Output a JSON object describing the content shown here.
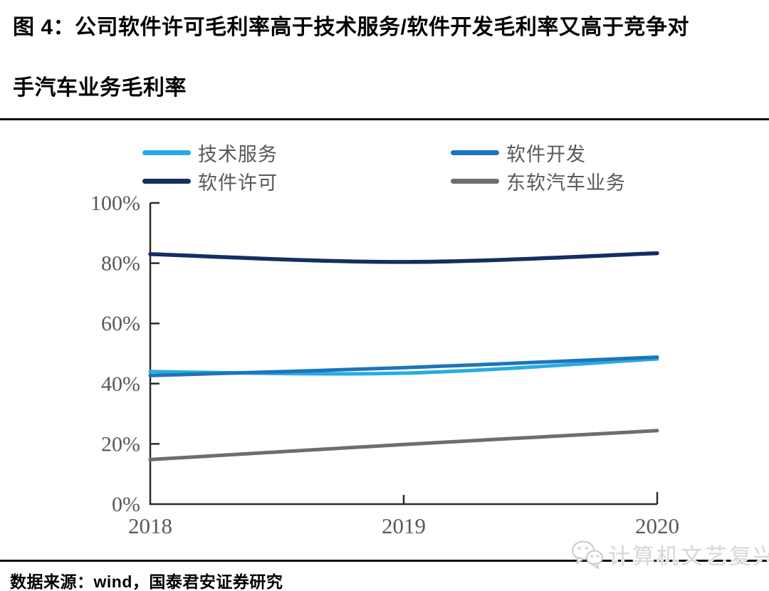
{
  "figure": {
    "title_line1": "图 4：公司软件许可毛利率高于技术服务/软件开发毛利率又高于竞争对",
    "title_line2": "手汽车业务毛利率"
  },
  "chart_data": {
    "type": "line",
    "line_style": "smooth",
    "x": [
      2018,
      2019,
      2020
    ],
    "xtick_labels": [
      "2018",
      "2019",
      "2020"
    ],
    "ytick_labels": [
      "0%",
      "20%",
      "40%",
      "60%",
      "80%",
      "100%"
    ],
    "ylim": [
      0,
      100
    ],
    "ytick_step": 20,
    "grid": false,
    "legend_position": "top",
    "series": [
      {
        "id": "tech-service",
        "name": "技术服务",
        "color": "#29ABE2",
        "values": [
          44.0,
          43.5,
          48.2
        ]
      },
      {
        "id": "software-dev",
        "name": "软件开发",
        "color": "#1C75BC",
        "values": [
          42.7,
          45.3,
          48.8
        ]
      },
      {
        "id": "software-license",
        "name": "软件许可",
        "color": "#152E62",
        "values": [
          83.0,
          80.4,
          83.3
        ]
      },
      {
        "id": "auto-business",
        "name": "东软汽车业务",
        "color": "#6E6E6E",
        "values": [
          14.8,
          19.8,
          24.4
        ]
      }
    ],
    "colors": {
      "axis": "#2b2b2b",
      "tick_label": "#595959"
    }
  },
  "footer": {
    "source": "数据来源：wind，国泰君安证券研究",
    "watermark": "计算机文艺复兴"
  }
}
